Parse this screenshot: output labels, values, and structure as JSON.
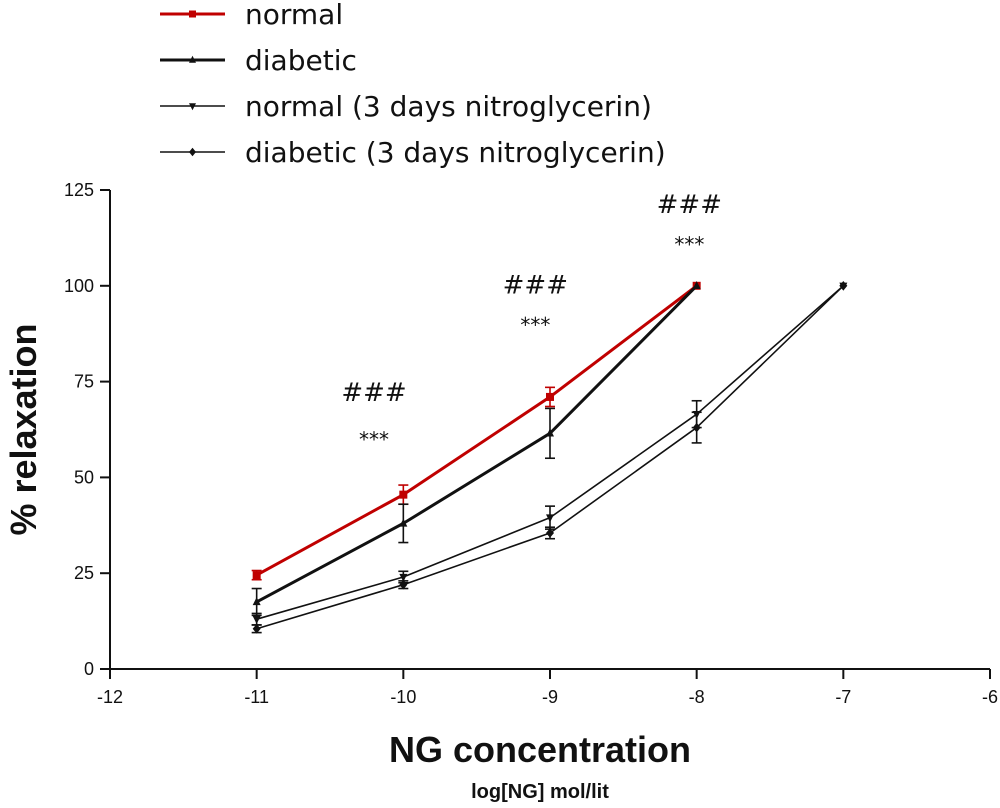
{
  "chart_data": {
    "type": "line",
    "title": "",
    "xlabel": "NG concentration",
    "xlabel_sub": "log[NG] mol/lit",
    "ylabel": "% relaxation",
    "xlim": [
      -12,
      -6
    ],
    "ylim": [
      0,
      125
    ],
    "x_ticks": [
      -12,
      -11,
      -10,
      -9,
      -8,
      -7,
      -6
    ],
    "x_tick_labels": [
      "-12",
      "-11",
      "-10",
      "-9",
      "-8",
      "-7",
      "-6"
    ],
    "y_ticks": [
      0,
      25,
      50,
      75,
      100,
      125
    ],
    "y_tick_labels": [
      "0",
      "25",
      "50",
      "75",
      "100",
      "125"
    ],
    "grid": false,
    "legend_position": "top-left",
    "series": [
      {
        "name": "normal",
        "color": "#c00000",
        "marker": "square",
        "line": "thick",
        "x": [
          -11,
          -10,
          -9,
          -8
        ],
        "values": [
          24.5,
          45.5,
          71,
          100
        ],
        "errors": [
          1.2,
          2.5,
          2.5,
          0
        ]
      },
      {
        "name": "diabetic",
        "color": "#111111",
        "marker": "triangle-up",
        "line": "thick",
        "x": [
          -11,
          -10,
          -9,
          -8
        ],
        "values": [
          17.5,
          38,
          61.5,
          100
        ],
        "errors": [
          3.5,
          5,
          6.5,
          0
        ]
      },
      {
        "name": "normal (3 days nitroglycerin)",
        "color": "#111111",
        "marker": "triangle-down",
        "line": "thin",
        "x": [
          -11,
          -10,
          -9,
          -8,
          -7
        ],
        "values": [
          13,
          24,
          39.5,
          66.5,
          100
        ],
        "errors": [
          1.5,
          1.5,
          3,
          3.5,
          0
        ]
      },
      {
        "name": "diabetic (3 days nitroglycerin)",
        "color": "#111111",
        "marker": "diamond",
        "line": "thin",
        "x": [
          -11,
          -10,
          -9,
          -8,
          -7
        ],
        "values": [
          10.5,
          22,
          35.5,
          63,
          100
        ],
        "errors": [
          1,
          1,
          1.5,
          4,
          0
        ]
      }
    ],
    "annotations": [
      {
        "x": -10.2,
        "hash_y": 70,
        "star_y": 58,
        "hash": "###",
        "stars": "***"
      },
      {
        "x": -9.1,
        "hash_y": 98,
        "star_y": 88,
        "hash": "###",
        "stars": "***"
      },
      {
        "x": -8.05,
        "hash_y": 119,
        "star_y": 109,
        "hash": "###",
        "stars": "***"
      }
    ]
  }
}
